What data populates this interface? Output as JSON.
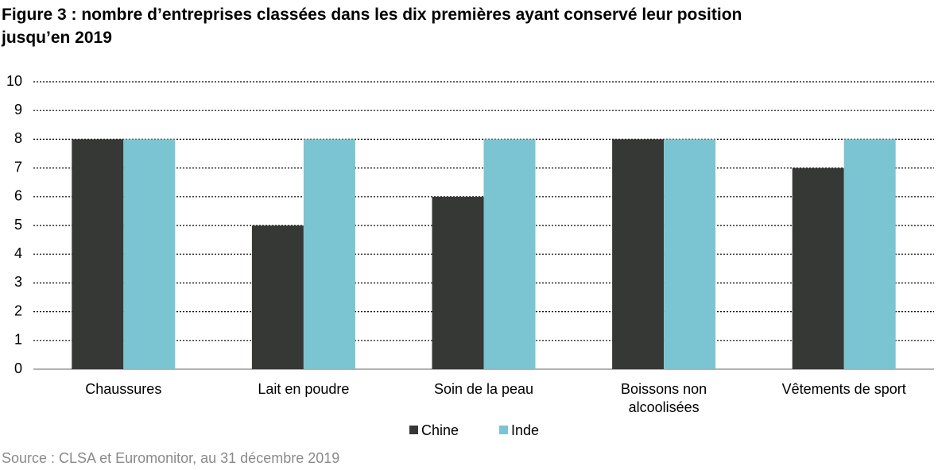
{
  "chart_data": {
    "type": "bar",
    "title": "Figure 3 : nombre d’entreprises classées dans les dix premières ayant conservé leur position jusqu’en 2019",
    "categories": [
      "Chaussures",
      "Lait en poudre",
      "Soin de la peau",
      "Boissons non alcoolisées",
      "Vêtements de sport"
    ],
    "series": [
      {
        "name": "Chine",
        "color": "#363835",
        "values": [
          8,
          5,
          6,
          8,
          7
        ]
      },
      {
        "name": "Inde",
        "color": "#7bc4d2",
        "values": [
          8,
          8,
          8,
          8,
          8
        ]
      }
    ],
    "ylim": [
      0,
      10
    ],
    "yticks": [
      0,
      1,
      2,
      3,
      4,
      5,
      6,
      7,
      8,
      9,
      10
    ],
    "grid": true,
    "legend": "bottom",
    "source": "Source : CLSA et Euromonitor, au 31 décembre 2019"
  }
}
